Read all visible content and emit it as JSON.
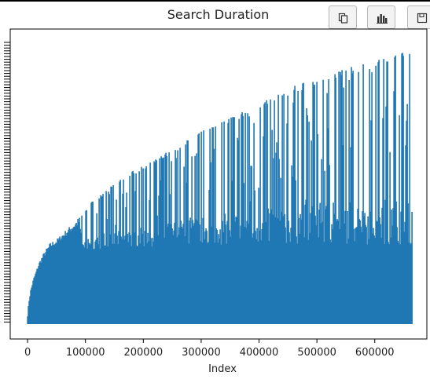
{
  "toolbar": {
    "copy_icon": "copy-icon",
    "chart_icon": "bar-chart-icon",
    "save_icon": "save-icon"
  },
  "chart_data": {
    "type": "area",
    "title": "Search Duration",
    "xlabel": "Index",
    "ylabel": "",
    "xlim": [
      -30000,
      690000
    ],
    "x_ticks": [
      0,
      100000,
      200000,
      300000,
      400000,
      500000,
      600000
    ],
    "x_tick_labels": [
      "0",
      "100000",
      "200000",
      "300000",
      "400000",
      "500000",
      "600000"
    ],
    "y_tick_labels_visible": false,
    "x_max": 665000,
    "series": [
      {
        "color": "#1f77b4",
        "envelope": {
          "x": [
            0,
            2000,
            5000,
            10000,
            20000,
            30000,
            40000,
            50000,
            60000,
            70000,
            80000,
            90000,
            100000,
            120000,
            140000,
            160000,
            180000,
            200000,
            220000,
            250000,
            280000,
            300000,
            330000,
            360000,
            400000,
            430000,
            460000,
            500000,
            530000,
            560000,
            600000,
            630000,
            650000,
            665000
          ],
          "y": [
            0.03,
            0.08,
            0.12,
            0.16,
            0.22,
            0.26,
            0.29,
            0.3,
            0.32,
            0.34,
            0.36,
            0.38,
            0.41,
            0.45,
            0.48,
            0.51,
            0.54,
            0.56,
            0.58,
            0.62,
            0.66,
            0.68,
            0.71,
            0.74,
            0.78,
            0.81,
            0.84,
            0.87,
            0.89,
            0.91,
            0.93,
            0.95,
            0.96,
            0.97
          ]
        },
        "dense_floor": {
          "x": [
            0,
            10000,
            20000,
            40000,
            60000,
            100000,
            150000,
            200000,
            250000,
            300000,
            400000,
            500000,
            600000,
            665000
          ],
          "y": [
            0.02,
            0.12,
            0.16,
            0.2,
            0.24,
            0.26,
            0.27,
            0.27,
            0.28,
            0.28,
            0.28,
            0.28,
            0.28,
            0.28
          ]
        }
      }
    ]
  }
}
